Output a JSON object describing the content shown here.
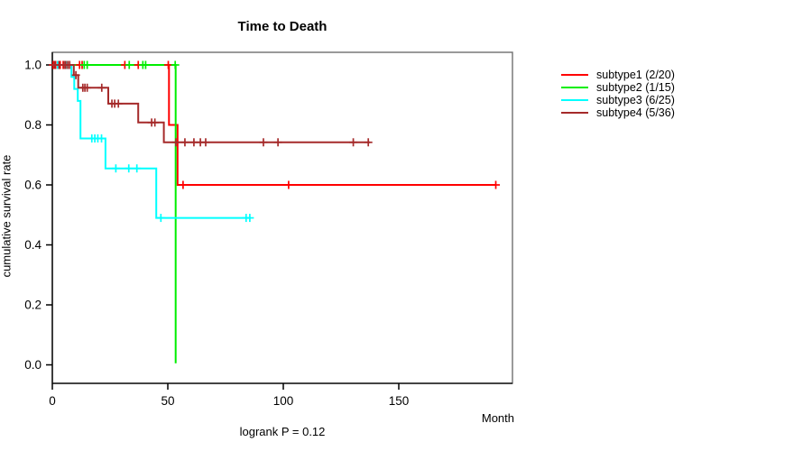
{
  "chart_data": {
    "type": "line",
    "subtype": "kaplan-meier-step",
    "title": "Time to Death",
    "xlabel": "Month",
    "ylabel": "cumulative survival rate",
    "annotation": "logrank P = 0.12",
    "x_ticks": [
      0,
      50,
      100,
      150
    ],
    "y_ticks": [
      0.0,
      0.2,
      0.4,
      0.6,
      0.8,
      1.0
    ],
    "xlim": [
      0,
      199
    ],
    "ylim": [
      0.0,
      1.0
    ],
    "grid": false,
    "legend_position": "right-outside",
    "series": [
      {
        "name": "subtype1",
        "legend_label": "subtype1 (2/20)",
        "color": "#ff0000",
        "events": "2/20",
        "steps": [
          [
            0,
            1.0
          ],
          [
            50.5,
            1.0
          ],
          [
            50.5,
            0.8
          ],
          [
            54.2,
            0.8
          ],
          [
            54.2,
            0.6
          ],
          [
            192,
            0.6
          ]
        ],
        "censors": [
          [
            0.4,
            1.0
          ],
          [
            1.4,
            1.0
          ],
          [
            3.4,
            1.0
          ],
          [
            4.7,
            1.0
          ],
          [
            11.8,
            1.0
          ],
          [
            12.9,
            1.0
          ],
          [
            31.4,
            1.0
          ],
          [
            37.2,
            1.0
          ],
          [
            50.2,
            1.0
          ],
          [
            56.6,
            0.6
          ],
          [
            102.3,
            0.6
          ],
          [
            192,
            0.6
          ]
        ]
      },
      {
        "name": "subtype2",
        "legend_label": "subtype2 (1/15)",
        "color": "#00ee00",
        "events": "1/15",
        "steps": [
          [
            0,
            1.0
          ],
          [
            53.4,
            1.0
          ],
          [
            53.4,
            0.005
          ]
        ],
        "censors": [
          [
            13.8,
            1.0
          ],
          [
            15.1,
            1.0
          ],
          [
            33.3,
            1.0
          ],
          [
            39.2,
            1.0
          ],
          [
            40.4,
            1.0
          ],
          [
            53.2,
            1.0
          ]
        ]
      },
      {
        "name": "subtype3",
        "legend_label": "subtype3 (6/25)",
        "color": "#00ffff",
        "events": "6/25",
        "steps": [
          [
            0,
            1.0
          ],
          [
            8.3,
            1.0
          ],
          [
            8.3,
            0.96
          ],
          [
            9.5,
            0.96
          ],
          [
            9.5,
            0.92
          ],
          [
            11,
            0.92
          ],
          [
            11,
            0.88
          ],
          [
            12.2,
            0.88
          ],
          [
            12.2,
            0.755
          ],
          [
            23,
            0.755
          ],
          [
            23,
            0.655
          ],
          [
            45,
            0.655
          ],
          [
            45,
            0.49
          ],
          [
            85.9,
            0.49
          ]
        ],
        "censors": [
          [
            2.2,
            1.0
          ],
          [
            6,
            1.0
          ],
          [
            17.1,
            0.755
          ],
          [
            18.4,
            0.755
          ],
          [
            19.7,
            0.755
          ],
          [
            21.3,
            0.755
          ],
          [
            27.5,
            0.655
          ],
          [
            33.1,
            0.655
          ],
          [
            36.6,
            0.655
          ],
          [
            47,
            0.49
          ],
          [
            83.9,
            0.49
          ],
          [
            85.5,
            0.49
          ]
        ]
      },
      {
        "name": "subtype4",
        "legend_label": "subtype4 (5/36)",
        "color": "#a52a2a",
        "events": "5/36",
        "steps": [
          [
            0,
            1.0
          ],
          [
            9.3,
            1.0
          ],
          [
            9.3,
            0.966
          ],
          [
            11.2,
            0.966
          ],
          [
            11.2,
            0.924
          ],
          [
            24.2,
            0.924
          ],
          [
            24.2,
            0.871
          ],
          [
            37.2,
            0.871
          ],
          [
            37.2,
            0.808
          ],
          [
            48.3,
            0.808
          ],
          [
            48.3,
            0.742
          ],
          [
            137.5,
            0.742
          ]
        ],
        "censors": [
          [
            1.0,
            1.0
          ],
          [
            2.9,
            1.0
          ],
          [
            5.1,
            1.0
          ],
          [
            5.8,
            1.0
          ],
          [
            6.7,
            1.0
          ],
          [
            7.5,
            1.0
          ],
          [
            10.2,
            0.966
          ],
          [
            13.2,
            0.924
          ],
          [
            14.1,
            0.924
          ],
          [
            15.1,
            0.924
          ],
          [
            21.4,
            0.924
          ],
          [
            25.8,
            0.871
          ],
          [
            27.0,
            0.871
          ],
          [
            28.6,
            0.871
          ],
          [
            43.0,
            0.808
          ],
          [
            44.4,
            0.808
          ],
          [
            53.5,
            0.742
          ],
          [
            57.4,
            0.742
          ],
          [
            61.3,
            0.742
          ],
          [
            64.1,
            0.742
          ],
          [
            66.4,
            0.742
          ],
          [
            91.4,
            0.742
          ],
          [
            97.7,
            0.742
          ],
          [
            130.3,
            0.742
          ],
          [
            136.8,
            0.742
          ]
        ]
      }
    ]
  }
}
